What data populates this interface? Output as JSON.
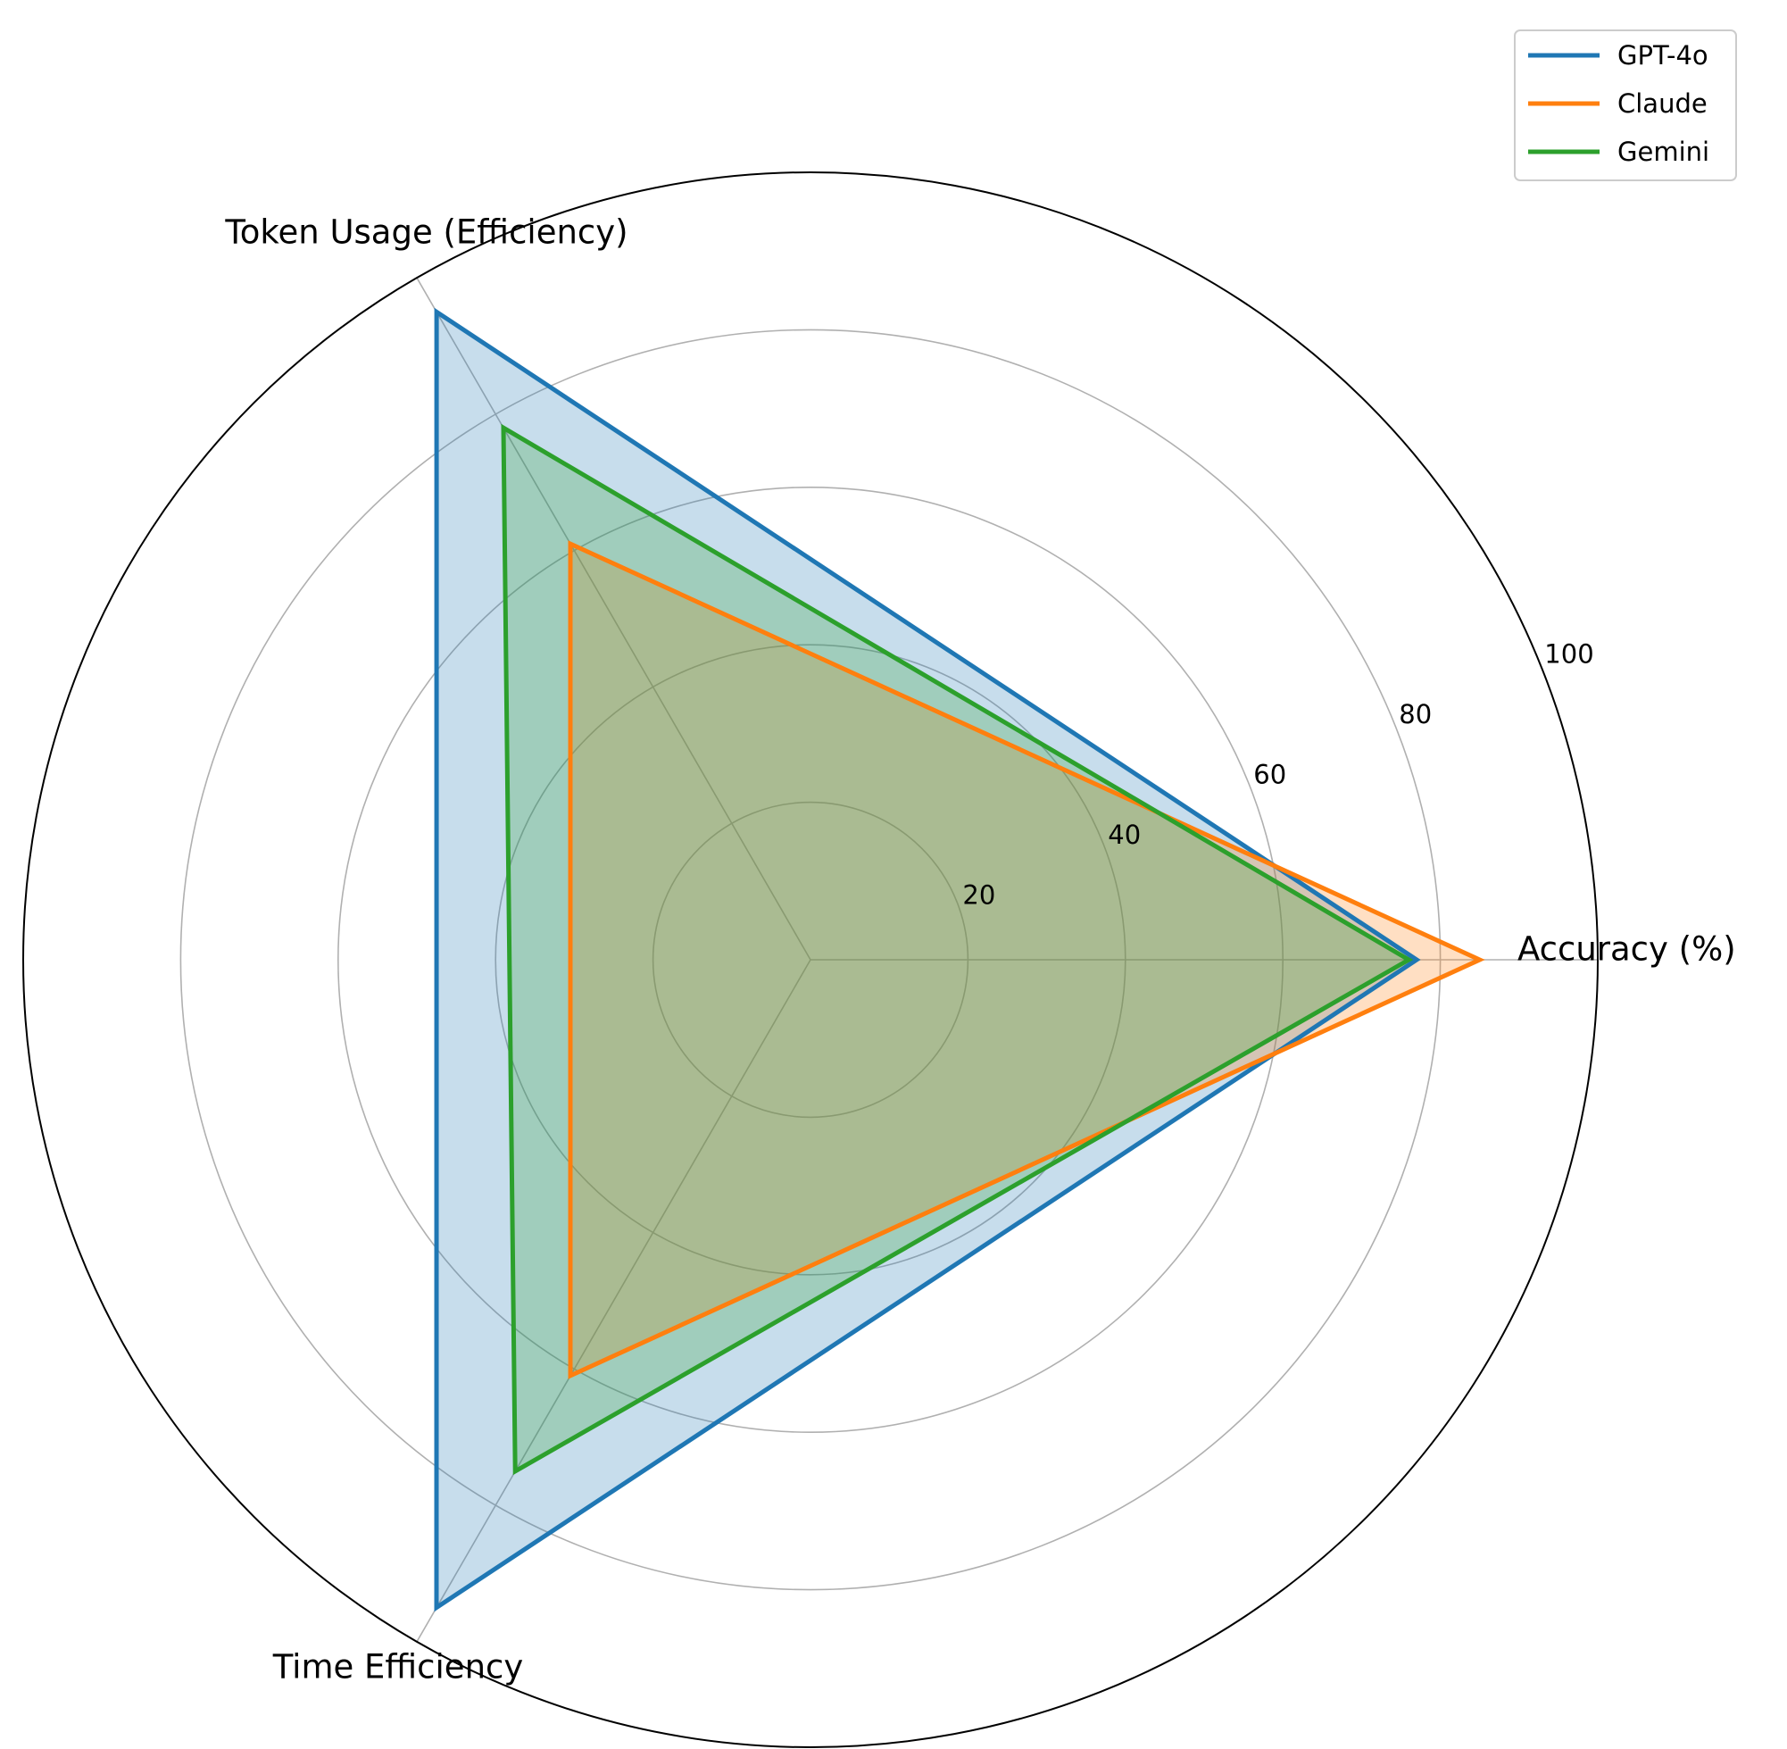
{
  "chart_data": {
    "type": "radar",
    "axes": [
      "Accuracy (%)",
      "Token Usage (Efficiency)",
      "Time Efficiency"
    ],
    "rlim": [
      0,
      100
    ],
    "r_ticks": [
      20,
      40,
      60,
      80,
      100
    ],
    "r_tick_labels": [
      "20",
      "40",
      "60",
      "80",
      "100"
    ],
    "grid": true,
    "legend_position": "top-right",
    "series": [
      {
        "name": "GPT-4o",
        "values": [
          77,
          95,
          95
        ],
        "color": "#1f77b4"
      },
      {
        "name": "Claude",
        "values": [
          85,
          61,
          61
        ],
        "color": "#ff7f0e"
      },
      {
        "name": "Gemini",
        "values": [
          76,
          78,
          75
        ],
        "color": "#2ca02c"
      }
    ]
  }
}
